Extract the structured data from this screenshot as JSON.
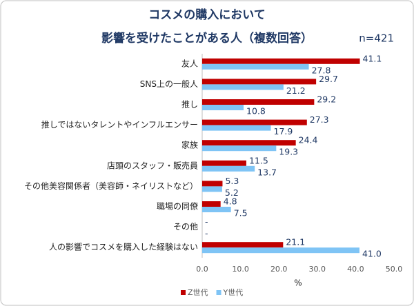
{
  "chart_data": {
    "type": "hbar",
    "title": [
      "コスメの購入において",
      "影響を受けたことがある人（複数回答）"
    ],
    "annotation": "n=421",
    "x_label": "%",
    "categories": [
      "友人",
      "SNS上の一般人",
      "推し",
      "推しではないタレントやインフルエンサー",
      "家族",
      "店頭のスタッフ・販売員",
      "その他美容関係者（美容師・ネイリストなど）",
      "職場の同僚",
      "その他",
      "人の影響でコスメを購入した経験はない"
    ],
    "series": [
      {
        "name": "Z世代",
        "color": "#c00000",
        "values": [
          41.1,
          29.7,
          29.2,
          27.3,
          24.4,
          11.5,
          5.3,
          4.8,
          null,
          21.1
        ],
        "value_labels": [
          "41.1",
          "29.7",
          "29.2",
          "27.3",
          "24.4",
          "11.5",
          "5.3",
          "4.8",
          "-",
          "21.1"
        ]
      },
      {
        "name": "Y世代",
        "color": "#7fc4f5",
        "values": [
          27.8,
          21.2,
          10.8,
          17.9,
          19.3,
          13.7,
          5.2,
          7.5,
          null,
          41.0
        ],
        "value_labels": [
          "27.8",
          "21.2",
          "10.8",
          "17.9",
          "19.3",
          "13.7",
          "5.2",
          "7.5",
          "-",
          "41.0"
        ]
      }
    ],
    "xlim": [
      0,
      50
    ],
    "xticks": [
      {
        "value": 0,
        "label": "0.0"
      },
      {
        "value": 10,
        "label": "10.0"
      },
      {
        "value": 20,
        "label": "20.0"
      },
      {
        "value": 30,
        "label": "30.0"
      },
      {
        "value": 40,
        "label": "40.0"
      },
      {
        "value": 50,
        "label": "50.0"
      }
    ],
    "grid": false,
    "legend": "bottom"
  }
}
